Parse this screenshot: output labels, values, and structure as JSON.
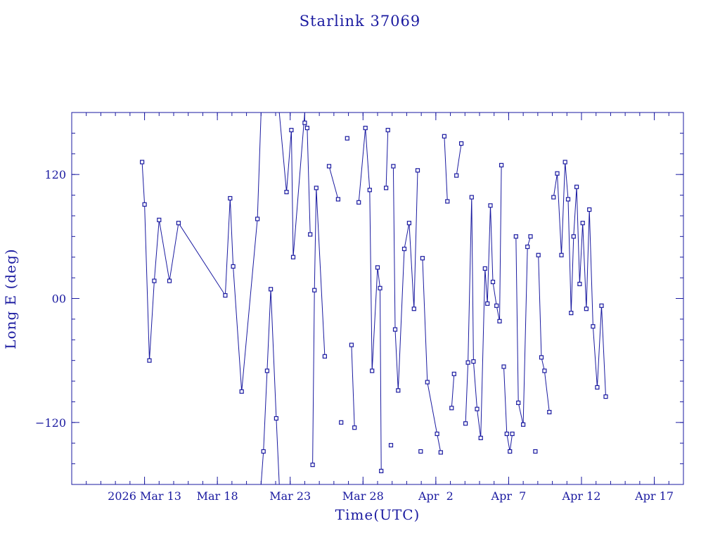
{
  "chart_data": {
    "type": "line",
    "title": "Starlink 37069",
    "xlabel": "Time(UTC)",
    "ylabel": "Long E (deg)",
    "xlim": [
      "2026-03-08",
      "2026-04-19"
    ],
    "ylim": [
      -180,
      180
    ],
    "x_ticks": [
      {
        "value": "2026-03-13",
        "label": "2026 Mar 13"
      },
      {
        "value": "2026-03-18",
        "label": "Mar 18"
      },
      {
        "value": "2026-03-23",
        "label": "Mar 23"
      },
      {
        "value": "2026-03-28",
        "label": "Mar 28"
      },
      {
        "value": "2026-04-02",
        "label": "Apr  2"
      },
      {
        "value": "2026-04-07",
        "label": "Apr  7"
      },
      {
        "value": "2026-04-12",
        "label": "Apr 12"
      },
      {
        "value": "2026-04-17",
        "label": "Apr 17"
      }
    ],
    "y_ticks": [
      {
        "value": 120,
        "label": "120"
      },
      {
        "value": 0,
        "label": "00"
      },
      {
        "value": -120,
        "label": "−120"
      }
    ],
    "grid": false,
    "series": [
      {
        "color": "#1a1aa0",
        "points": [
          {
            "x": "2026-03-12 20:00",
            "y": 132
          },
          {
            "x": "2026-03-13 00:00",
            "y": 91
          },
          {
            "x": "2026-03-13 08:00",
            "y": -60
          },
          {
            "x": "2026-03-13 16:00",
            "y": 17
          },
          {
            "x": "2026-03-14 00:00",
            "y": 76
          },
          {
            "x": "2026-03-14 17:00",
            "y": 17
          },
          {
            "x": "2026-03-15 08:00",
            "y": 73
          },
          {
            "x": "2026-03-18 13:00",
            "y": 3
          },
          {
            "x": "2026-03-18 21:00",
            "y": 97
          },
          {
            "x": "2026-03-19 02:00",
            "y": 31
          },
          {
            "x": "2026-03-19 16:00",
            "y": -90
          },
          {
            "x": "2026-03-20 18:00",
            "y": 77
          },
          {
            "x": "2026-03-21 00:00",
            "y": 180
          },
          {
            "x": "2026-03-21 00:00",
            "y": -180
          },
          {
            "x": "2026-03-21 04:00",
            "y": -148
          },
          {
            "x": "2026-03-21 10:00",
            "y": -70
          },
          {
            "x": "2026-03-21 16:00",
            "y": 9
          },
          {
            "x": "2026-03-22 01:00",
            "y": -116
          },
          {
            "x": "2026-03-22 06:00",
            "y": -180
          },
          {
            "x": "2026-03-22 06:00",
            "y": 180
          },
          {
            "x": "2026-03-22 18:00",
            "y": 103
          },
          {
            "x": "2026-03-23 02:00",
            "y": 163
          },
          {
            "x": "2026-03-23 05:00",
            "y": 40
          },
          {
            "x": "2026-03-24 00:00",
            "y": 180
          },
          {
            "x": "2026-03-24 00:00",
            "y": 170
          },
          {
            "x": "2026-03-24 04:00",
            "y": 165
          },
          {
            "x": "2026-03-24 09:00",
            "y": 62
          },
          {
            "x": "2026-03-24 13:00",
            "y": -161
          },
          {
            "x": "2026-03-24 16:00",
            "y": 8
          },
          {
            "x": "2026-03-24 19:00",
            "y": 107
          },
          {
            "x": "2026-03-25 09:00",
            "y": -56
          },
          {
            "x": "2026-03-25 16:00",
            "y": 128
          },
          {
            "x": "2026-03-26 07:00",
            "y": 96
          },
          {
            "x": "2026-03-26 12:00",
            "y": -120
          },
          {
            "x": "2026-03-26 22:00",
            "y": 155
          },
          {
            "x": "2026-03-27 05:00",
            "y": -45
          },
          {
            "x": "2026-03-27 10:00",
            "y": -125
          },
          {
            "x": "2026-03-27 17:00",
            "y": 93
          },
          {
            "x": "2026-03-28 04:00",
            "y": 165
          },
          {
            "x": "2026-03-28 11:00",
            "y": 105
          },
          {
            "x": "2026-03-28 15:00",
            "y": -70
          },
          {
            "x": "2026-03-29 00:00",
            "y": 30
          },
          {
            "x": "2026-03-29 04:00",
            "y": 10
          },
          {
            "x": "2026-03-29 06:00",
            "y": -167
          },
          {
            "x": "2026-03-29 14:00",
            "y": 107
          },
          {
            "x": "2026-03-29 17:00",
            "y": 163
          },
          {
            "x": "2026-03-29 22:00",
            "y": -142
          },
          {
            "x": "2026-03-30 02:00",
            "y": 128
          },
          {
            "x": "2026-03-30 05:00",
            "y": -30
          },
          {
            "x": "2026-03-30 10:00",
            "y": -89
          },
          {
            "x": "2026-03-30 20:00",
            "y": 48
          },
          {
            "x": "2026-03-31 04:00",
            "y": 73
          },
          {
            "x": "2026-03-31 12:00",
            "y": -10
          },
          {
            "x": "2026-03-31 18:00",
            "y": 124
          },
          {
            "x": "2026-03-31 23:00",
            "y": -148
          },
          {
            "x": "2026-04-01 02:00",
            "y": 39
          },
          {
            "x": "2026-04-01 10:00",
            "y": -81
          },
          {
            "x": "2026-04-02 02:00",
            "y": -131
          },
          {
            "x": "2026-04-02 08:00",
            "y": -149
          },
          {
            "x": "2026-04-02 14:00",
            "y": 157
          },
          {
            "x": "2026-04-02 19:00",
            "y": 94
          },
          {
            "x": "2026-04-03 02:00",
            "y": -106
          },
          {
            "x": "2026-04-03 06:00",
            "y": -73
          },
          {
            "x": "2026-04-03 10:00",
            "y": 119
          },
          {
            "x": "2026-04-03 18:00",
            "y": 150
          },
          {
            "x": "2026-04-04 01:00",
            "y": -121
          },
          {
            "x": "2026-04-04 05:00",
            "y": -62
          },
          {
            "x": "2026-04-04 11:00",
            "y": 98
          },
          {
            "x": "2026-04-04 14:00",
            "y": -61
          },
          {
            "x": "2026-04-04 20:00",
            "y": -107
          },
          {
            "x": "2026-04-05 02:00",
            "y": -135
          },
          {
            "x": "2026-04-05 09:00",
            "y": 29
          },
          {
            "x": "2026-04-05 13:00",
            "y": -5
          },
          {
            "x": "2026-04-05 18:00",
            "y": 90
          },
          {
            "x": "2026-04-05 22:00",
            "y": 16
          },
          {
            "x": "2026-04-06 04:00",
            "y": -7
          },
          {
            "x": "2026-04-06 09:00",
            "y": -22
          },
          {
            "x": "2026-04-06 12:00",
            "y": 129
          },
          {
            "x": "2026-04-06 16:00",
            "y": -66
          },
          {
            "x": "2026-04-06 21:00",
            "y": -131
          },
          {
            "x": "2026-04-07 02:00",
            "y": -148
          },
          {
            "x": "2026-04-07 06:00",
            "y": -131
          },
          {
            "x": "2026-04-07 12:00",
            "y": 60
          },
          {
            "x": "2026-04-07 16:00",
            "y": -101
          },
          {
            "x": "2026-04-08 00:00",
            "y": -122
          },
          {
            "x": "2026-04-08 07:00",
            "y": 50
          },
          {
            "x": "2026-04-08 12:00",
            "y": 60
          },
          {
            "x": "2026-04-08 20:00",
            "y": -148
          },
          {
            "x": "2026-04-09 01:00",
            "y": 42
          },
          {
            "x": "2026-04-09 06:00",
            "y": -57
          },
          {
            "x": "2026-04-09 11:00",
            "y": -70
          },
          {
            "x": "2026-04-09 19:00",
            "y": -110
          },
          {
            "x": "2026-04-10 02:00",
            "y": 98
          },
          {
            "x": "2026-04-10 08:00",
            "y": 121
          },
          {
            "x": "2026-04-10 15:00",
            "y": 42
          },
          {
            "x": "2026-04-10 21:00",
            "y": 132
          },
          {
            "x": "2026-04-11 02:00",
            "y": 96
          },
          {
            "x": "2026-04-11 07:00",
            "y": -14
          },
          {
            "x": "2026-04-11 11:00",
            "y": 60
          },
          {
            "x": "2026-04-11 16:00",
            "y": 108
          },
          {
            "x": "2026-04-11 21:00",
            "y": 14
          },
          {
            "x": "2026-04-12 02:00",
            "y": 73
          },
          {
            "x": "2026-04-12 08:00",
            "y": -10
          },
          {
            "x": "2026-04-12 13:00",
            "y": 86
          },
          {
            "x": "2026-04-12 19:00",
            "y": -27
          },
          {
            "x": "2026-04-13 02:00",
            "y": -86
          },
          {
            "x": "2026-04-13 09:00",
            "y": -7
          },
          {
            "x": "2026-04-13 16:00",
            "y": -95
          }
        ]
      }
    ]
  }
}
